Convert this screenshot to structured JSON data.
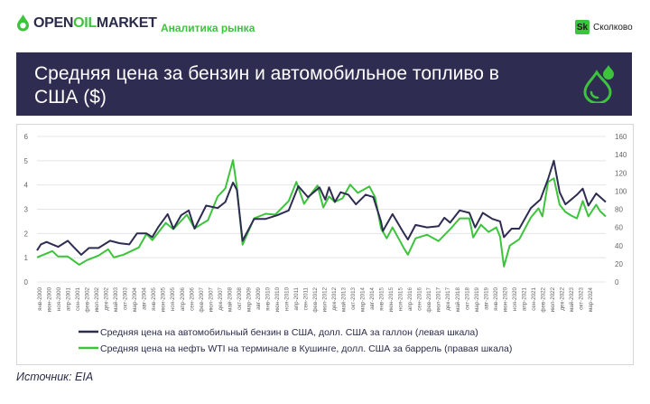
{
  "header": {
    "logo_text_a": "OPEN",
    "logo_text_b": "OIL",
    "logo_text_c": "MARKET",
    "tagline": "Аналитика рынка",
    "partner_badge": "Sk",
    "partner_name": "Сколково"
  },
  "banner": {
    "title": "Средняя цена за бензин и автомобильное топливо в США ($)",
    "icon": "oil-drops-icon"
  },
  "source": "Источник: EIA",
  "colors": {
    "navy": "#2f2c52",
    "green": "#3cc43c",
    "grid": "#e4e4e4",
    "axis_text": "#666666"
  },
  "chart_data": {
    "type": "line",
    "ylim_left": [
      0,
      6
    ],
    "ylim_right": [
      0,
      160
    ],
    "left_ticks": [
      "0",
      "1",
      "2",
      "3",
      "4",
      "5",
      "6"
    ],
    "right_ticks": [
      "0",
      "20",
      "40",
      "60",
      "80",
      "100",
      "120",
      "140",
      "160"
    ],
    "grid": true,
    "legend_position": "bottom",
    "x_labels": [
      "янв-2000",
      "июн-2000",
      "ноя-2000",
      "апр-2001",
      "сен-2001",
      "фев-2002",
      "июл-2002",
      "дек-2002",
      "май-2003",
      "окт-2003",
      "мар-2004",
      "авг-2004",
      "янв-2005",
      "июн-2005",
      "ноя-2005",
      "апр-2006",
      "сен-2006",
      "фев-2007",
      "июл-2007",
      "дек-2007",
      "май-2008",
      "окт-2008",
      "мар-2009",
      "авг-2009",
      "янв-2010",
      "июн-2010",
      "ноя-2010",
      "апр-2011",
      "сен-2011",
      "фев-2012",
      "июл-2012",
      "дек-2012",
      "май-2013",
      "окт-2013",
      "мар-2014",
      "авг-2014",
      "янв-2015",
      "июн-2015",
      "ноя-2015",
      "апр-2016",
      "сен-2016",
      "фев-2017",
      "июл-2017",
      "дек-2017",
      "май-2018",
      "окт-2018",
      "мар-2019",
      "авг-2019",
      "янв-2020",
      "июн-2020",
      "ноя-2020",
      "апр-2021",
      "сен-2021",
      "фев-2022",
      "июл-2022",
      "дек-2022",
      "май-2023",
      "окт-2023",
      "мар-2024"
    ],
    "x_start": "2000-01",
    "x_end": "2024-09",
    "series": [
      {
        "name": "Средняя цена на автомобильный бензин в США, долл. США за галлон (левая шкала)",
        "axis": "left",
        "color": "#2f2c52",
        "points": [
          [
            "2000-01",
            1.3
          ],
          [
            "2000-03",
            1.55
          ],
          [
            "2000-06",
            1.65
          ],
          [
            "2000-09",
            1.55
          ],
          [
            "2000-12",
            1.45
          ],
          [
            "2001-05",
            1.7
          ],
          [
            "2001-08",
            1.45
          ],
          [
            "2001-12",
            1.12
          ],
          [
            "2002-04",
            1.4
          ],
          [
            "2002-09",
            1.4
          ],
          [
            "2003-03",
            1.7
          ],
          [
            "2003-08",
            1.6
          ],
          [
            "2004-01",
            1.55
          ],
          [
            "2004-05",
            2.0
          ],
          [
            "2004-10",
            2.0
          ],
          [
            "2005-01",
            1.85
          ],
          [
            "2005-04",
            2.25
          ],
          [
            "2005-09",
            2.8
          ],
          [
            "2005-12",
            2.2
          ],
          [
            "2006-04",
            2.75
          ],
          [
            "2006-08",
            2.95
          ],
          [
            "2006-11",
            2.2
          ],
          [
            "2007-05",
            3.15
          ],
          [
            "2007-11",
            3.05
          ],
          [
            "2008-03",
            3.3
          ],
          [
            "2008-07",
            4.1
          ],
          [
            "2008-09",
            3.8
          ],
          [
            "2008-12",
            1.7
          ],
          [
            "2009-06",
            2.6
          ],
          [
            "2009-12",
            2.6
          ],
          [
            "2010-06",
            2.75
          ],
          [
            "2010-12",
            2.95
          ],
          [
            "2011-05",
            3.95
          ],
          [
            "2011-10",
            3.5
          ],
          [
            "2012-04",
            3.9
          ],
          [
            "2012-07",
            3.4
          ],
          [
            "2012-09",
            3.9
          ],
          [
            "2012-12",
            3.3
          ],
          [
            "2013-03",
            3.7
          ],
          [
            "2013-07",
            3.6
          ],
          [
            "2013-11",
            3.2
          ],
          [
            "2014-04",
            3.6
          ],
          [
            "2014-08",
            3.5
          ],
          [
            "2014-12",
            2.5
          ],
          [
            "2015-01",
            2.1
          ],
          [
            "2015-06",
            2.8
          ],
          [
            "2015-12",
            2.0
          ],
          [
            "2016-02",
            1.75
          ],
          [
            "2016-06",
            2.35
          ],
          [
            "2016-12",
            2.25
          ],
          [
            "2017-06",
            2.3
          ],
          [
            "2017-09",
            2.65
          ],
          [
            "2017-12",
            2.45
          ],
          [
            "2018-05",
            2.95
          ],
          [
            "2018-10",
            2.85
          ],
          [
            "2019-01",
            2.25
          ],
          [
            "2019-05",
            2.85
          ],
          [
            "2019-10",
            2.6
          ],
          [
            "2020-02",
            2.5
          ],
          [
            "2020-04",
            1.85
          ],
          [
            "2020-08",
            2.2
          ],
          [
            "2020-12",
            2.2
          ],
          [
            "2021-06",
            3.05
          ],
          [
            "2021-11",
            3.4
          ],
          [
            "2022-03",
            4.25
          ],
          [
            "2022-06",
            5.0
          ],
          [
            "2022-09",
            3.7
          ],
          [
            "2022-12",
            3.2
          ],
          [
            "2023-03",
            3.4
          ],
          [
            "2023-06",
            3.6
          ],
          [
            "2023-09",
            3.85
          ],
          [
            "2023-12",
            3.15
          ],
          [
            "2024-04",
            3.65
          ],
          [
            "2024-09",
            3.3
          ]
        ]
      },
      {
        "name": "Средняя цена на нефть WTI на терминале в Кушинге, долл. США за баррель (правая шкала)",
        "axis": "right",
        "color": "#3cc43c",
        "points": [
          [
            "2000-01",
            27
          ],
          [
            "2000-09",
            34
          ],
          [
            "2000-12",
            28
          ],
          [
            "2001-05",
            28
          ],
          [
            "2001-11",
            19
          ],
          [
            "2002-03",
            24
          ],
          [
            "2002-09",
            29
          ],
          [
            "2003-02",
            36
          ],
          [
            "2003-05",
            27
          ],
          [
            "2003-10",
            30
          ],
          [
            "2004-02",
            34
          ],
          [
            "2004-06",
            38
          ],
          [
            "2004-10",
            53
          ],
          [
            "2005-01",
            46
          ],
          [
            "2005-08",
            65
          ],
          [
            "2005-12",
            58
          ],
          [
            "2006-07",
            74
          ],
          [
            "2006-11",
            59
          ],
          [
            "2007-06",
            68
          ],
          [
            "2007-11",
            94
          ],
          [
            "2008-03",
            103
          ],
          [
            "2008-07",
            134
          ],
          [
            "2008-09",
            104
          ],
          [
            "2008-12",
            41
          ],
          [
            "2009-06",
            70
          ],
          [
            "2009-12",
            75
          ],
          [
            "2010-05",
            74
          ],
          [
            "2010-12",
            89
          ],
          [
            "2011-04",
            110
          ],
          [
            "2011-08",
            86
          ],
          [
            "2011-12",
            98
          ],
          [
            "2012-03",
            106
          ],
          [
            "2012-06",
            82
          ],
          [
            "2012-09",
            94
          ],
          [
            "2012-12",
            88
          ],
          [
            "2013-04",
            92
          ],
          [
            "2013-08",
            107
          ],
          [
            "2013-12",
            98
          ],
          [
            "2014-06",
            105
          ],
          [
            "2014-09",
            93
          ],
          [
            "2014-12",
            59
          ],
          [
            "2015-03",
            48
          ],
          [
            "2015-06",
            60
          ],
          [
            "2015-12",
            37
          ],
          [
            "2016-02",
            30
          ],
          [
            "2016-06",
            48
          ],
          [
            "2016-12",
            52
          ],
          [
            "2017-06",
            45
          ],
          [
            "2017-12",
            58
          ],
          [
            "2018-05",
            70
          ],
          [
            "2018-10",
            70
          ],
          [
            "2018-12",
            49
          ],
          [
            "2019-04",
            63
          ],
          [
            "2019-08",
            55
          ],
          [
            "2019-12",
            60
          ],
          [
            "2020-02",
            50
          ],
          [
            "2020-04",
            17
          ],
          [
            "2020-07",
            40
          ],
          [
            "2020-12",
            47
          ],
          [
            "2021-06",
            71
          ],
          [
            "2021-10",
            81
          ],
          [
            "2021-12",
            72
          ],
          [
            "2022-03",
            110
          ],
          [
            "2022-06",
            114
          ],
          [
            "2022-09",
            85
          ],
          [
            "2022-12",
            77
          ],
          [
            "2023-03",
            73
          ],
          [
            "2023-06",
            70
          ],
          [
            "2023-09",
            89
          ],
          [
            "2023-12",
            72
          ],
          [
            "2024-04",
            85
          ],
          [
            "2024-06",
            78
          ],
          [
            "2024-09",
            72
          ]
        ]
      }
    ]
  }
}
